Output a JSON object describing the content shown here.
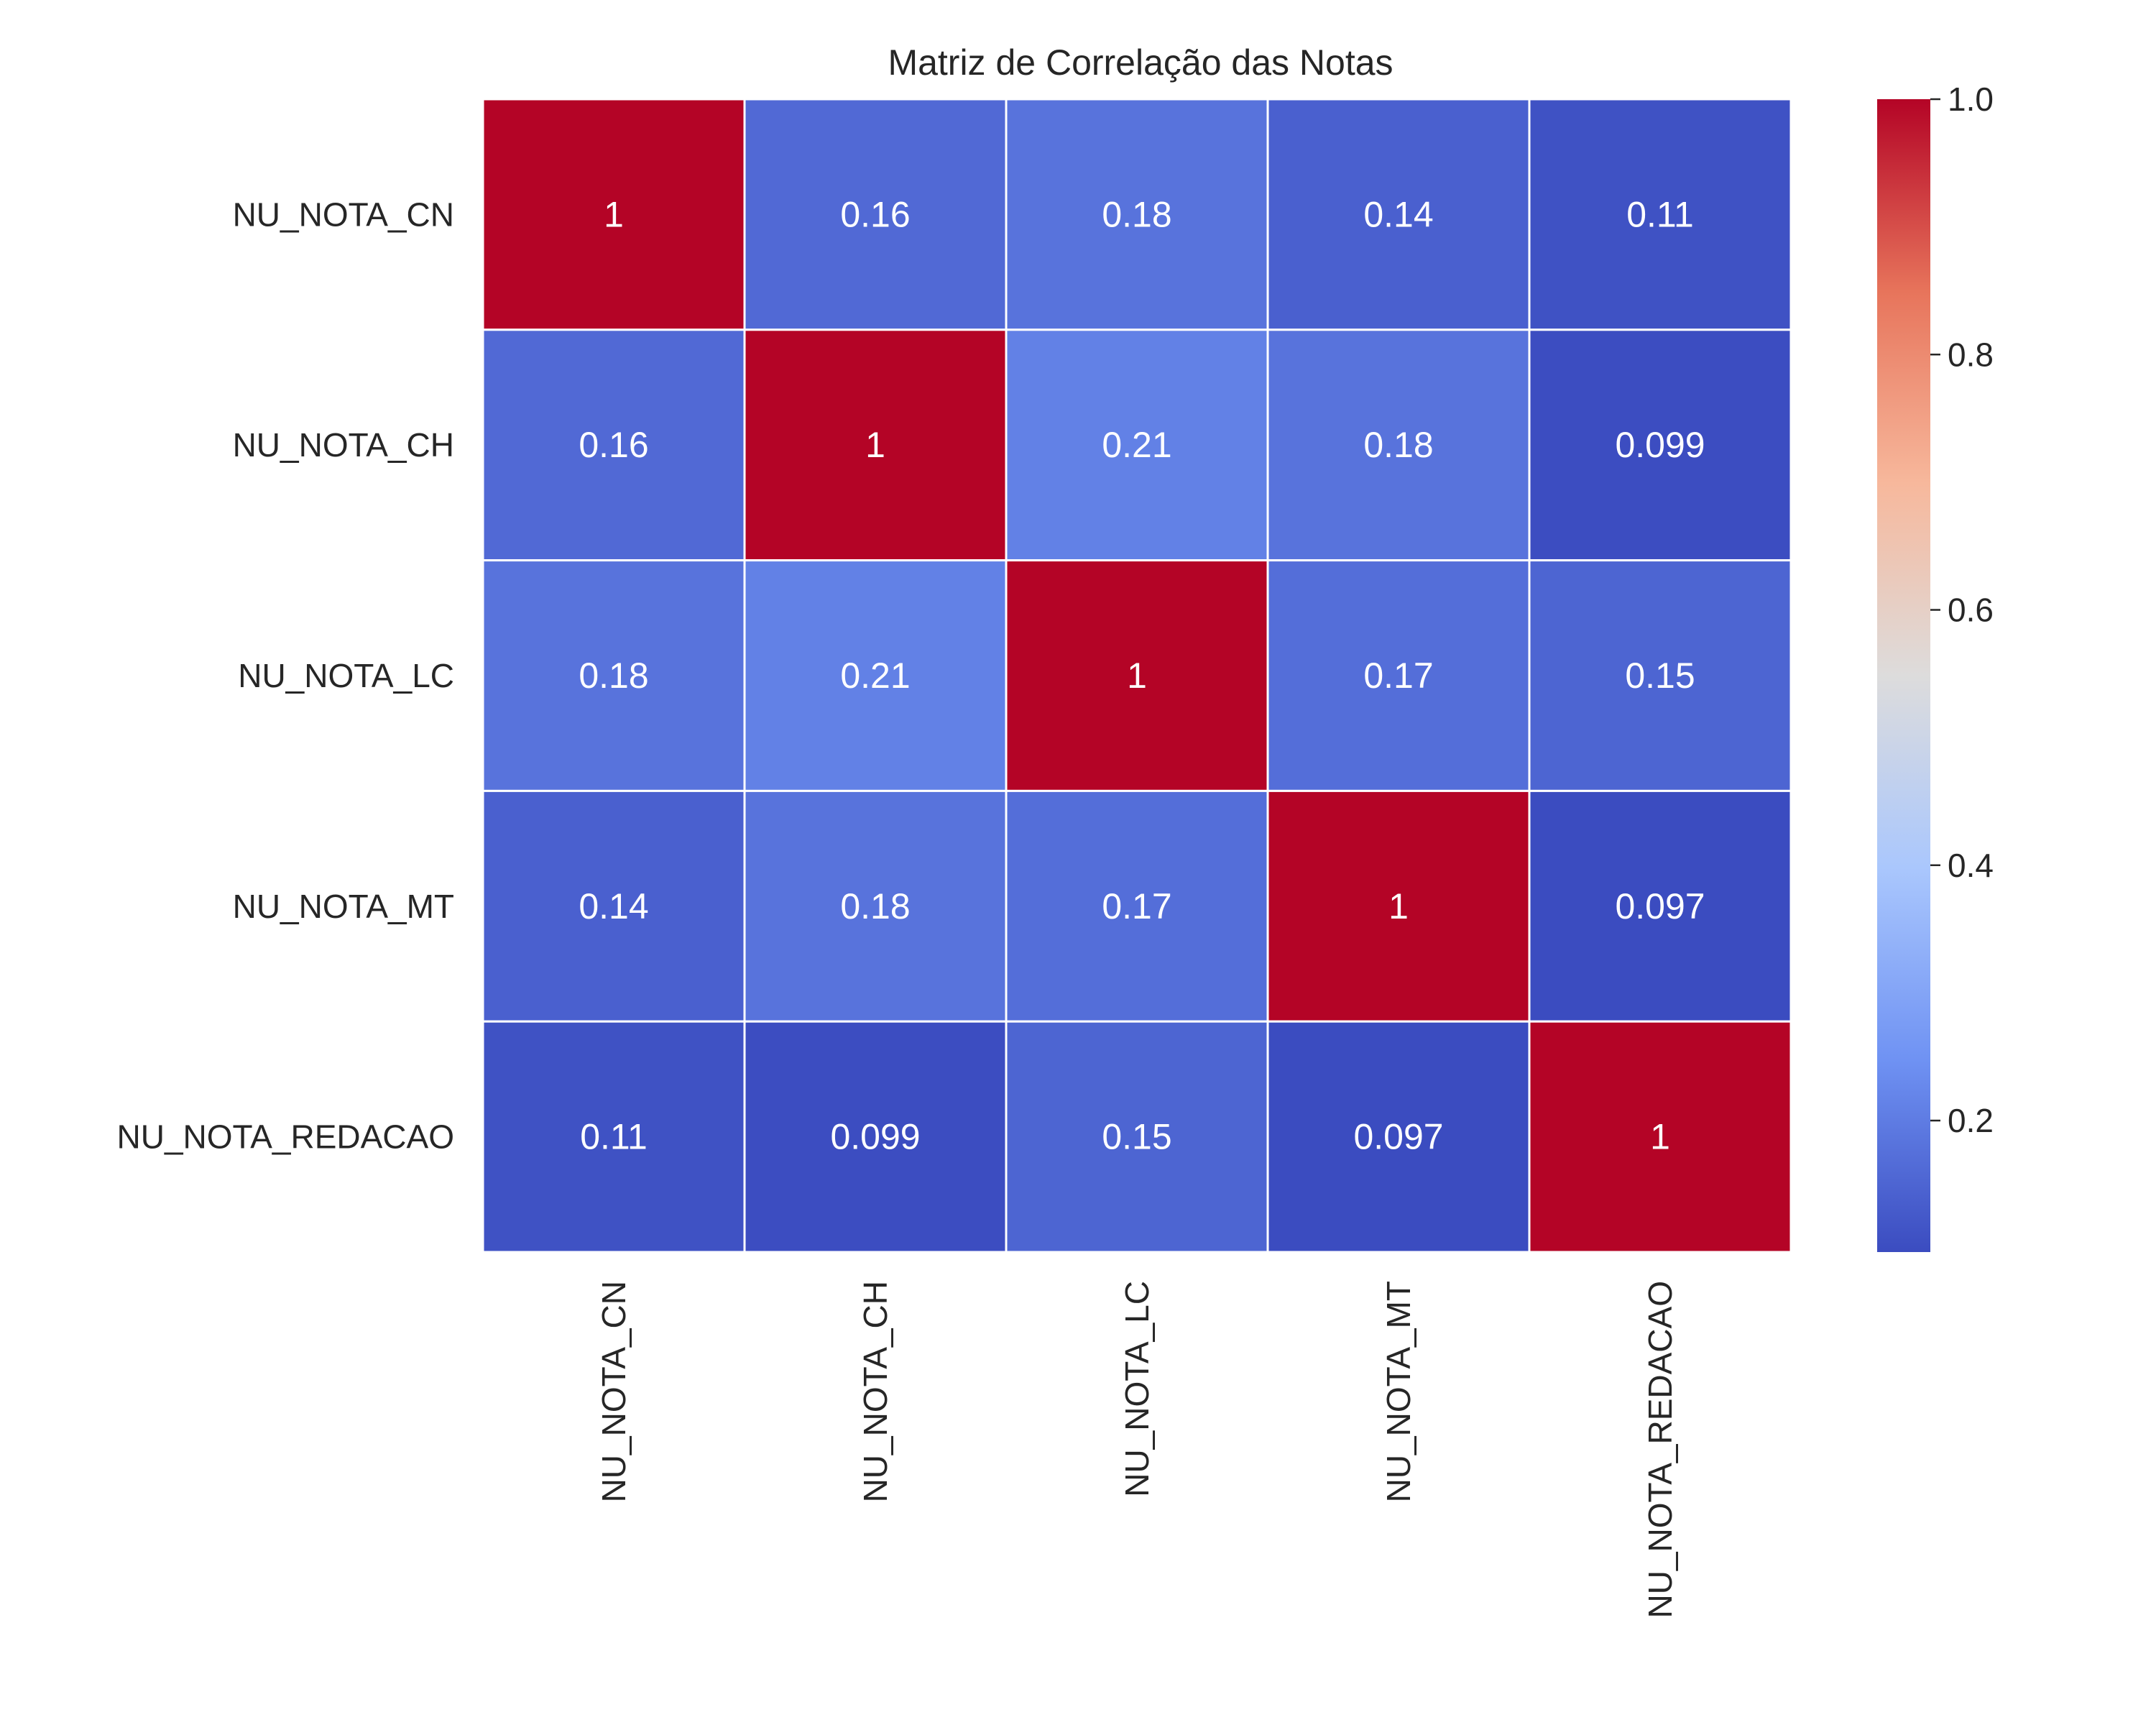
{
  "chart_data": {
    "type": "heatmap",
    "title": "Matriz de Correlação das Notas",
    "xlabel": "",
    "ylabel": "",
    "row_labels": [
      "NU_NOTA_CN",
      "NU_NOTA_CH",
      "NU_NOTA_LC",
      "NU_NOTA_MT",
      "NU_NOTA_REDACAO"
    ],
    "col_labels": [
      "NU_NOTA_CN",
      "NU_NOTA_CH",
      "NU_NOTA_LC",
      "NU_NOTA_MT",
      "NU_NOTA_REDACAO"
    ],
    "values": [
      [
        1,
        0.16,
        0.18,
        0.14,
        0.11
      ],
      [
        0.16,
        1,
        0.21,
        0.18,
        0.099
      ],
      [
        0.18,
        0.21,
        1,
        0.17,
        0.15
      ],
      [
        0.14,
        0.18,
        0.17,
        1,
        0.097
      ],
      [
        0.11,
        0.099,
        0.15,
        0.097,
        1
      ]
    ],
    "annotations": [
      [
        "1",
        "0.16",
        "0.18",
        "0.14",
        "0.11"
      ],
      [
        "0.16",
        "1",
        "0.21",
        "0.18",
        "0.099"
      ],
      [
        "0.18",
        "0.21",
        "1",
        "0.17",
        "0.15"
      ],
      [
        "0.14",
        "0.18",
        "0.17",
        "1",
        "0.097"
      ],
      [
        "0.11",
        "0.099",
        "0.15",
        "0.097",
        "1"
      ]
    ],
    "colormap": "coolwarm",
    "colormap_stops": [
      "#3b4cc0",
      "#6f92f3",
      "#aac7fd",
      "#dddcdc",
      "#f7b89c",
      "#e7745b",
      "#b40426"
    ],
    "vmin": 0.097,
    "vmax": 1.0,
    "colorbar_ticks": [
      "0.2",
      "0.4",
      "0.6",
      "0.8",
      "1.0"
    ],
    "grid_line_color": "#ffffff",
    "annotation_color": "#ffffff"
  }
}
